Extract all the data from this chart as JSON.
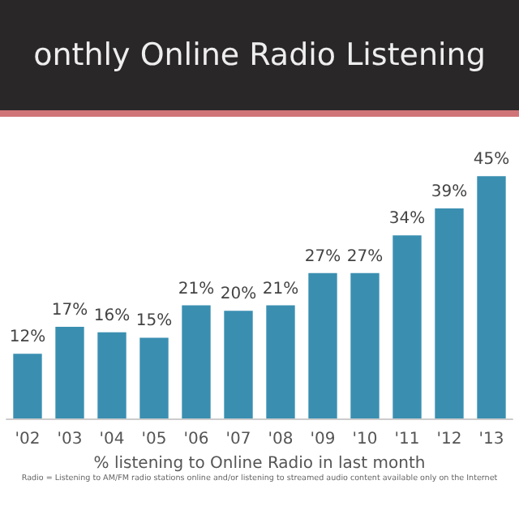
{
  "chart_data": {
    "type": "bar",
    "title": "onthly Online Radio Listening",
    "categories": [
      "'02",
      "'03",
      "'04",
      "'05",
      "'06",
      "'07",
      "'08",
      "'09",
      "'10",
      "'11",
      "'12",
      "'13"
    ],
    "values": [
      12,
      17,
      16,
      15,
      21,
      20,
      21,
      27,
      27,
      34,
      39,
      45
    ],
    "value_labels": [
      "12%",
      "17%",
      "16%",
      "15%",
      "21%",
      "20%",
      "21%",
      "27%",
      "27%",
      "34%",
      "39%",
      "45%"
    ],
    "color": "#3a8fb1",
    "xlabel": "% listening to Online Radio in last month",
    "annotations": [
      "Radio = Listening to AM/FM radio stations online and/or listening to streamed audio content available only on the Internet"
    ]
  }
}
